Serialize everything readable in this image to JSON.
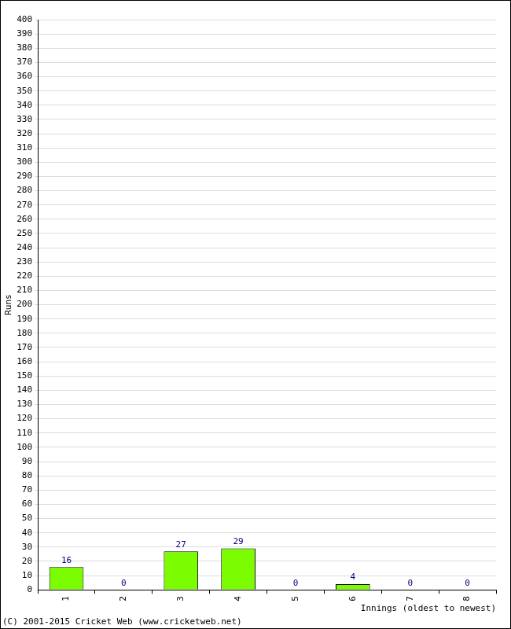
{
  "chart_data": {
    "type": "bar",
    "categories": [
      "1",
      "2",
      "3",
      "4",
      "5",
      "6",
      "7",
      "8"
    ],
    "values": [
      16,
      0,
      27,
      29,
      0,
      4,
      0,
      0
    ],
    "color": "#7cfc00",
    "x_label": "Innings (oldest to newest)",
    "y_label": "Runs",
    "annotations": [
      "(C) 2001-2015 Cricket Web (www.cricketweb.net)"
    ],
    "ylim": [
      0,
      400
    ],
    "yticks": [
      0,
      10,
      20,
      30,
      40,
      50,
      60,
      70,
      80,
      90,
      100,
      110,
      120,
      130,
      140,
      150,
      160,
      170,
      180,
      190,
      200,
      210,
      220,
      230,
      240,
      250,
      260,
      270,
      280,
      290,
      300,
      310,
      320,
      330,
      340,
      350,
      360,
      370,
      380,
      390,
      400
    ],
    "grid": true,
    "data_labels": true
  }
}
